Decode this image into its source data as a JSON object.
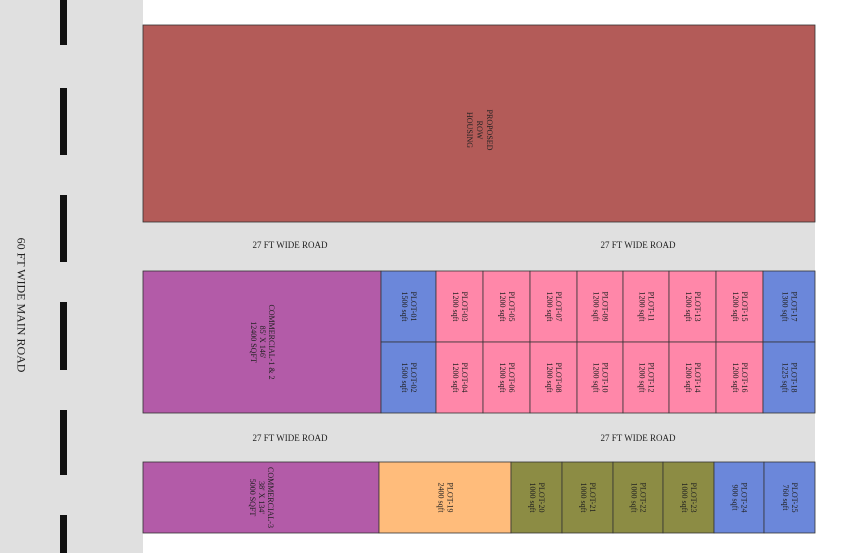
{
  "main_road": "60 FT WIDE MAIN ROAD",
  "road_labels": [
    "27 FT WIDE ROAD",
    "27 FT WIDE ROAD",
    "27 FT WIDE ROAD",
    "27 FT WIDE ROAD"
  ],
  "row_housing": {
    "lines": [
      "PROPOSED",
      "ROW",
      "HOUSING"
    ],
    "color": "#b35b58"
  },
  "commercial": [
    {
      "lines": [
        "COMMERCIAL-1 & 2",
        "85' X 146'",
        "12400 SQFT"
      ],
      "color": "#b35ba8"
    },
    {
      "lines": [
        "COMMERCIAL-3",
        "38' X 134'",
        "5000 SQFT"
      ],
      "color": "#b35ba8"
    }
  ],
  "plots": [
    {
      "name": "PLOT-01",
      "area": "1500 sqft",
      "color": "#6b87da"
    },
    {
      "name": "PLOT-02",
      "area": "1500 sqft",
      "color": "#6b87da"
    },
    {
      "name": "PLOT-03",
      "area": "1200 sqft",
      "color": "#ff87a9"
    },
    {
      "name": "PLOT-04",
      "area": "1200 sqft",
      "color": "#ff87a9"
    },
    {
      "name": "PLOT-05",
      "area": "1200 sqft",
      "color": "#ff87a9"
    },
    {
      "name": "PLOT-06",
      "area": "1200 sqft",
      "color": "#ff87a9"
    },
    {
      "name": "PLOT-07",
      "area": "1200 sqft",
      "color": "#ff87a9"
    },
    {
      "name": "PLOT-08",
      "area": "1200 sqft",
      "color": "#ff87a9"
    },
    {
      "name": "PLOT-09",
      "area": "1200 sqft",
      "color": "#ff87a9"
    },
    {
      "name": "PLOT-10",
      "area": "1200 sqft",
      "color": "#ff87a9"
    },
    {
      "name": "PLOT-11",
      "area": "1200 sqft",
      "color": "#ff87a9"
    },
    {
      "name": "PLOT-12",
      "area": "1200 sqft",
      "color": "#ff87a9"
    },
    {
      "name": "PLOT-13",
      "area": "1200 sqft",
      "color": "#ff87a9"
    },
    {
      "name": "PLOT-14",
      "area": "1200 sqft",
      "color": "#ff87a9"
    },
    {
      "name": "PLOT-15",
      "area": "1200 sqft",
      "color": "#ff87a9"
    },
    {
      "name": "PLOT-16",
      "area": "1200 sqft",
      "color": "#ff87a9"
    },
    {
      "name": "PLOT-17",
      "area": "1300 sqft",
      "color": "#6b87da"
    },
    {
      "name": "PLOT-18",
      "area": "1225 sqft",
      "color": "#6b87da"
    },
    {
      "name": "PLOT-19",
      "area": "2400 sqft",
      "color": "#ffbc7b"
    },
    {
      "name": "PLOT-20",
      "area": "1000 sqft",
      "color": "#8c8c44"
    },
    {
      "name": "PLOT-21",
      "area": "1000 sqft",
      "color": "#8c8c44"
    },
    {
      "name": "PLOT-22",
      "area": "1000 sqft",
      "color": "#8c8c44"
    },
    {
      "name": "PLOT-23",
      "area": "1000 sqft",
      "color": "#8c8c44"
    },
    {
      "name": "PLOT-24",
      "area": "900 sqft",
      "color": "#6b87da"
    },
    {
      "name": "PLOT-25",
      "area": "760 sqft",
      "color": "#6b87da"
    }
  ]
}
